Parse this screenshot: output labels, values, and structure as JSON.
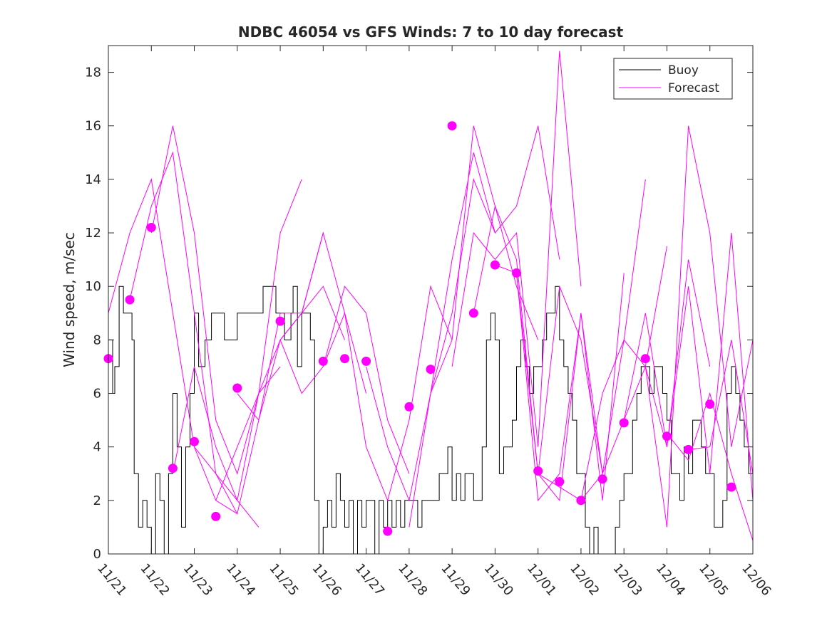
{
  "chart_data": {
    "type": "line",
    "title": "NDBC 46054 vs GFS Winds: 7 to 10 day forecast",
    "xlabel": "",
    "ylabel": "Wind speed, m/sec",
    "x_unit": "days since 11/21",
    "xlim": [
      0,
      15
    ],
    "ylim": [
      0,
      19
    ],
    "y_ticks": [
      0,
      2,
      4,
      6,
      8,
      10,
      12,
      14,
      16,
      18
    ],
    "x_ticks": [
      {
        "x": 0,
        "label": "11/21"
      },
      {
        "x": 1,
        "label": "11/22"
      },
      {
        "x": 2,
        "label": "11/23"
      },
      {
        "x": 3,
        "label": "11/24"
      },
      {
        "x": 4,
        "label": "11/25"
      },
      {
        "x": 5,
        "label": "11/26"
      },
      {
        "x": 6,
        "label": "11/27"
      },
      {
        "x": 7,
        "label": "11/28"
      },
      {
        "x": 8,
        "label": "11/29"
      },
      {
        "x": 9,
        "label": "11/30"
      },
      {
        "x": 10,
        "label": "12/01"
      },
      {
        "x": 11,
        "label": "12/02"
      },
      {
        "x": 12,
        "label": "12/03"
      },
      {
        "x": 13,
        "label": "12/04"
      },
      {
        "x": 14,
        "label": "12/05"
      },
      {
        "x": 15,
        "label": "12/06"
      }
    ],
    "legend": {
      "position": "top-right",
      "entries": [
        {
          "name": "Buoy",
          "color": "#000000"
        },
        {
          "name": "Forecast",
          "color": "#ff00ff"
        }
      ]
    },
    "series": [
      {
        "name": "Buoy",
        "color": "#000000",
        "style": "step",
        "x": [
          0,
          0.1,
          0.15,
          0.25,
          0.35,
          0.45,
          0.55,
          0.6,
          0.7,
          0.8,
          0.9,
          1.0,
          1.1,
          1.2,
          1.3,
          1.4,
          1.5,
          1.6,
          1.7,
          1.8,
          1.9,
          2.0,
          2.1,
          2.25,
          2.4,
          2.55,
          2.7,
          2.85,
          3.0,
          3.15,
          3.3,
          3.45,
          3.6,
          3.75,
          3.9,
          4.0,
          4.1,
          4.2,
          4.25,
          4.3,
          4.4,
          4.5,
          4.6,
          4.7,
          4.8,
          4.9,
          5.0,
          5.1,
          5.2,
          5.3,
          5.4,
          5.5,
          5.6,
          5.7,
          5.8,
          5.9,
          6.0,
          6.1,
          6.2,
          6.3,
          6.4,
          6.5,
          6.6,
          6.7,
          6.8,
          6.9,
          7.0,
          7.1,
          7.2,
          7.3,
          7.4,
          7.5,
          7.6,
          7.7,
          7.8,
          7.9,
          8.0,
          8.1,
          8.2,
          8.3,
          8.4,
          8.5,
          8.6,
          8.7,
          8.8,
          8.9,
          9.0,
          9.1,
          9.2,
          9.3,
          9.4,
          9.5,
          9.6,
          9.7,
          9.8,
          9.9,
          10.0,
          10.1,
          10.2,
          10.3,
          10.4,
          10.5,
          10.6,
          10.7,
          10.8,
          10.9,
          11.0,
          11.1,
          11.2,
          11.3,
          11.4,
          11.5,
          11.6,
          11.7,
          11.8,
          11.9,
          12.0,
          12.1,
          12.2,
          12.3,
          12.4,
          12.5,
          12.6,
          12.7,
          12.8,
          12.9,
          13.0,
          13.1,
          13.2,
          13.3,
          13.4,
          13.5,
          13.6,
          13.7,
          13.8,
          13.9,
          14.0,
          14.1,
          14.2,
          14.3,
          14.4,
          14.5,
          14.6,
          14.7,
          14.8,
          14.9,
          15.0
        ],
        "values": [
          8,
          6,
          7,
          10,
          9,
          9,
          8,
          3,
          1,
          2,
          1,
          0,
          3,
          2,
          0,
          3,
          6,
          4,
          1,
          4,
          6,
          9,
          7,
          8,
          9,
          9,
          8,
          8,
          9,
          9,
          9,
          9,
          10,
          10,
          9,
          9,
          8,
          8,
          9,
          10,
          7,
          9,
          9,
          8,
          2,
          0,
          1,
          2,
          1,
          3,
          2,
          1,
          2,
          0,
          2,
          1,
          2,
          2,
          0,
          2,
          1,
          2,
          1,
          2,
          1,
          2,
          2,
          2,
          1,
          2,
          2,
          2,
          2,
          3,
          3,
          4,
          2,
          3,
          2,
          3,
          3,
          2,
          2,
          4,
          8,
          9,
          8,
          3,
          4,
          4,
          5,
          7,
          8,
          7,
          6,
          7,
          7,
          8,
          9,
          9,
          10,
          8,
          7,
          6,
          5,
          3,
          3,
          1,
          0,
          1,
          0,
          0,
          0,
          0,
          1,
          2,
          3,
          3,
          5,
          6,
          7,
          7,
          6,
          7,
          7,
          6,
          5,
          3,
          3,
          2,
          4,
          3,
          5,
          5,
          4,
          3,
          3,
          1,
          1,
          2,
          6,
          7,
          6,
          5,
          4,
          3,
          3
        ]
      },
      {
        "name": "Forecast",
        "color": "#ff00ff",
        "x": [
          0,
          0.5,
          1,
          1.5,
          2,
          2.5,
          3
        ],
        "values": [
          9,
          12,
          14,
          9,
          4,
          2,
          1.5
        ]
      },
      {
        "name": "Forecast",
        "color": "#ff00ff",
        "x": [
          0.5,
          1,
          1.5,
          2,
          2.5,
          3,
          3.5
        ],
        "values": [
          9.5,
          13,
          15,
          9,
          3,
          2,
          1
        ]
      },
      {
        "name": "Forecast",
        "color": "#ff00ff",
        "x": [
          1,
          1.5,
          2,
          2.5,
          3,
          3.5,
          4
        ],
        "values": [
          12,
          16,
          12,
          5,
          3,
          6,
          7
        ]
      },
      {
        "name": "Forecast",
        "color": "#ff00ff",
        "x": [
          1.5,
          2,
          2.5,
          3,
          3.5,
          4,
          4.5
        ],
        "values": [
          3,
          7,
          4,
          2,
          6,
          12,
          14
        ]
      },
      {
        "name": "Forecast",
        "color": "#ff00ff",
        "x": [
          2,
          2.5,
          3,
          3.5,
          4,
          4.5,
          5
        ],
        "values": [
          4,
          3,
          1.5,
          5,
          9,
          9,
          12
        ]
      },
      {
        "name": "Forecast",
        "color": "#ff00ff",
        "x": [
          2.5,
          3,
          3.5,
          4,
          4.5,
          5,
          5.5
        ],
        "values": [
          2,
          4,
          6,
          8,
          9,
          10,
          8
        ]
      },
      {
        "name": "Forecast",
        "color": "#ff00ff",
        "x": [
          3,
          3.5,
          4,
          4.5,
          5,
          5.5,
          6
        ],
        "values": [
          6,
          5,
          8,
          9,
          12,
          9,
          6
        ]
      },
      {
        "name": "Forecast",
        "color": "#ff00ff",
        "x": [
          4,
          4.5,
          5,
          5.5,
          6,
          6.5,
          7
        ],
        "values": [
          8,
          6,
          7,
          10,
          9,
          5,
          3
        ]
      },
      {
        "name": "Forecast",
        "color": "#ff00ff",
        "x": [
          5,
          5.5,
          6,
          6.5,
          7,
          7.5,
          8
        ],
        "values": [
          7,
          9,
          4,
          2,
          5,
          10,
          8
        ]
      },
      {
        "name": "Forecast",
        "color": "#ff00ff",
        "x": [
          6,
          6.5,
          7,
          7.5,
          8,
          8.5,
          9
        ],
        "values": [
          7,
          4,
          2,
          6,
          11,
          15,
          12
        ]
      },
      {
        "name": "Forecast",
        "color": "#ff00ff",
        "x": [
          7,
          7.5,
          8,
          8.5,
          9,
          9.5,
          10
        ],
        "values": [
          1,
          6,
          8,
          16,
          13,
          10,
          8
        ]
      },
      {
        "name": "Forecast",
        "color": "#ff00ff",
        "x": [
          7.5,
          8,
          8.5,
          9,
          9.5,
          10,
          10.5
        ],
        "values": [
          6,
          9,
          14,
          12,
          13,
          16,
          11
        ]
      },
      {
        "name": "Forecast",
        "color": "#ff00ff",
        "x": [
          8,
          8.5,
          9,
          9.5,
          10,
          10.5,
          11
        ],
        "values": [
          7,
          12,
          11,
          12,
          4,
          18.8,
          10
        ]
      },
      {
        "name": "Forecast",
        "color": "#ff00ff",
        "x": [
          8.5,
          9,
          9.5,
          10,
          10.5,
          11,
          11.5
        ],
        "values": [
          9,
          13,
          11,
          3,
          10,
          8,
          3
        ]
      },
      {
        "name": "Forecast",
        "color": "#ff00ff",
        "x": [
          9,
          9.5,
          10,
          10.5,
          11,
          11.5,
          12
        ],
        "values": [
          10.8,
          10.5,
          2,
          3,
          9,
          2,
          10.5
        ]
      },
      {
        "name": "Forecast",
        "color": "#ff00ff",
        "x": [
          9.5,
          10,
          10.5,
          11,
          11.5,
          12,
          12.5
        ],
        "values": [
          10.5,
          3,
          2,
          9,
          3,
          8,
          14
        ]
      },
      {
        "name": "Forecast",
        "color": "#ff00ff",
        "x": [
          10,
          10.5,
          11,
          11.5,
          12,
          12.5,
          13
        ],
        "values": [
          3,
          2.5,
          2,
          6,
          8,
          7,
          11.5
        ]
      },
      {
        "name": "Forecast",
        "color": "#ff00ff",
        "x": [
          11,
          11.5,
          12,
          12.5,
          13,
          13.5,
          14
        ],
        "values": [
          2,
          3,
          5,
          9,
          4,
          11,
          7
        ]
      },
      {
        "name": "Forecast",
        "color": "#ff00ff",
        "x": [
          12,
          12.5,
          13,
          13.5,
          14,
          14.5,
          15
        ],
        "values": [
          5,
          7,
          4,
          10,
          3,
          12,
          2
        ]
      },
      {
        "name": "Forecast",
        "color": "#ff00ff",
        "x": [
          12.5,
          13,
          13.5,
          14,
          14.5,
          15
        ],
        "values": [
          7,
          1,
          16,
          12,
          4,
          8
        ]
      },
      {
        "name": "Forecast",
        "color": "#ff00ff",
        "x": [
          13,
          13.5,
          14,
          14.5,
          15
        ],
        "values": [
          4.5,
          3.5,
          6,
          3,
          0.5
        ]
      },
      {
        "name": "Forecast",
        "color": "#ff00ff",
        "x": [
          13.5,
          14,
          14.5,
          15
        ],
        "values": [
          3.9,
          4,
          8,
          3
        ]
      }
    ],
    "markers": {
      "name": "Forecast",
      "color": "#ff00ff",
      "x": [
        0,
        0.5,
        1,
        1.5,
        2,
        2.5,
        3,
        3.5,
        4,
        5,
        5.5,
        6,
        6.5,
        7,
        7.5,
        8,
        8.5,
        9,
        9.5,
        10,
        10.5,
        11,
        11.5,
        12,
        12.5,
        13,
        13.5,
        14,
        14.5
      ],
      "values": [
        7.3,
        9.5,
        12.2,
        3.2,
        4.2,
        1.4,
        6.2,
        null,
        8.7,
        7.2,
        7.3,
        7.2,
        0.85,
        5.5,
        6.9,
        16,
        9,
        10.8,
        10.5,
        3.1,
        2.7,
        2,
        2.8,
        4.9,
        7.3,
        4.4,
        3.9,
        5.6,
        2.5
      ]
    }
  }
}
